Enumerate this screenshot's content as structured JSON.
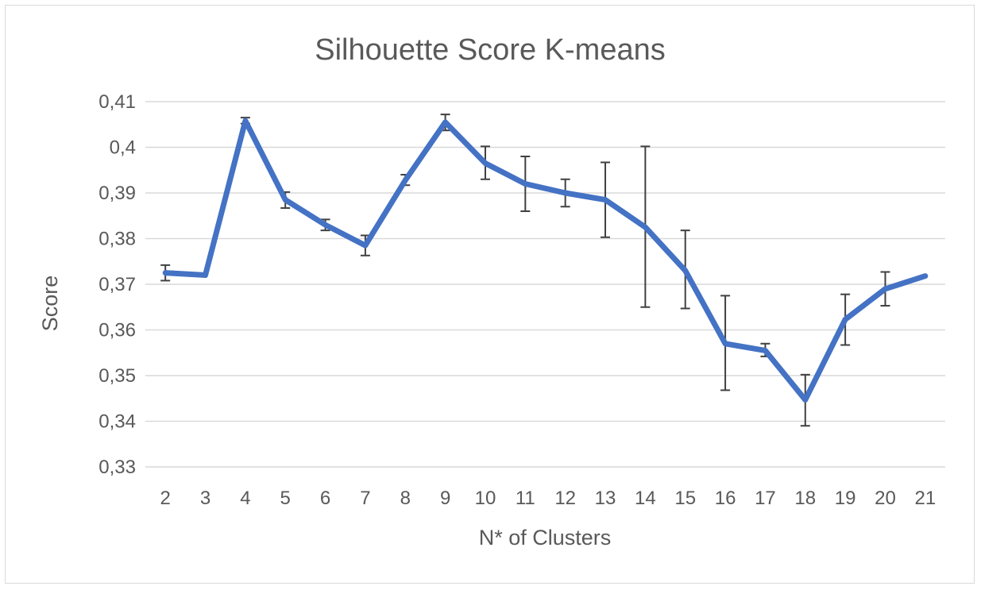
{
  "chart_data": {
    "type": "line",
    "title": "Silhouette Score K-means",
    "xlabel": "N* of Clusters",
    "ylabel": "Score",
    "ylim": [
      0.33,
      0.41
    ],
    "ytick_step": 0.01,
    "ytick_labels": [
      "0,33",
      "0,34",
      "0,35",
      "0,36",
      "0,37",
      "0,38",
      "0,39",
      "0,4",
      "0,41"
    ],
    "categories": [
      "2",
      "3",
      "4",
      "5",
      "6",
      "7",
      "8",
      "9",
      "10",
      "11",
      "12",
      "13",
      "14",
      "15",
      "16",
      "17",
      "18",
      "19",
      "20",
      "21"
    ],
    "grid": true,
    "legend": "none",
    "series": [
      {
        "color": "#4472c4",
        "values": [
          0.3725,
          0.372,
          0.4058,
          0.3885,
          0.383,
          0.3785,
          0.3928,
          0.4055,
          0.3965,
          0.392,
          0.39,
          0.3885,
          0.3825,
          0.373,
          0.357,
          0.3555,
          0.3447,
          0.3623,
          0.369,
          0.3718
        ],
        "error_low": [
          0.3708,
          null,
          0.4052,
          0.3867,
          0.3818,
          0.3763,
          0.3917,
          0.4037,
          0.393,
          0.386,
          0.387,
          0.3803,
          0.365,
          0.3647,
          0.3468,
          0.3542,
          0.339,
          0.3567,
          0.3653,
          null
        ],
        "error_high": [
          0.3742,
          null,
          0.4065,
          0.3902,
          0.3842,
          0.3807,
          0.394,
          0.4072,
          0.4002,
          0.398,
          0.393,
          0.3967,
          0.4002,
          0.3818,
          0.3675,
          0.357,
          0.3502,
          0.3678,
          0.3727,
          null
        ]
      }
    ]
  }
}
